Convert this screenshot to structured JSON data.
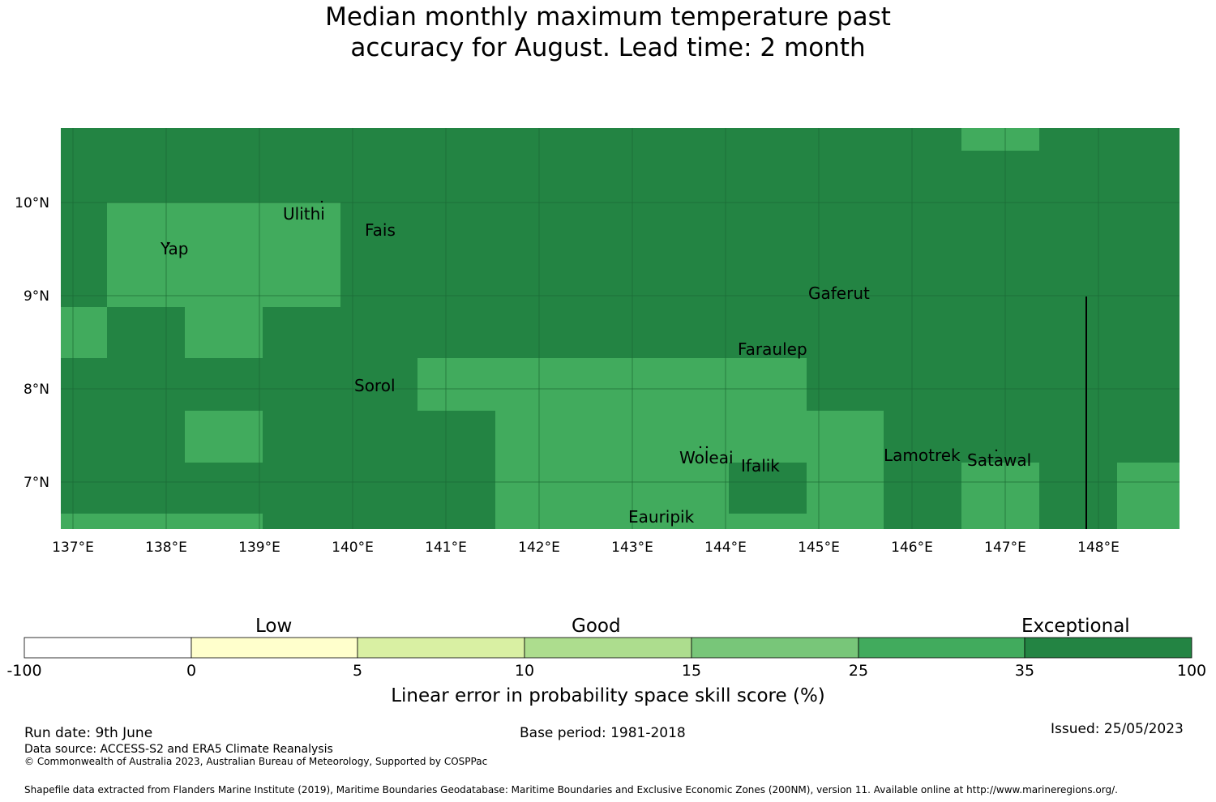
{
  "title_line1": "Median monthly maximum temperature past",
  "title_line2": "accuracy for August. Lead time: 2 month",
  "map": {
    "lon_labels": [
      "137°E",
      "138°E",
      "139°E",
      "140°E",
      "141°E",
      "142°E",
      "143°E",
      "144°E",
      "145°E",
      "146°E",
      "147°E",
      "148°E"
    ],
    "lat_labels": [
      "10°N",
      "9°N",
      "8°N",
      "7°N"
    ],
    "places": [
      {
        "name": "Ulithi"
      },
      {
        "name": "Fais"
      },
      {
        "name": "Yap"
      },
      {
        "name": "Gaferut"
      },
      {
        "name": "Faraulep"
      },
      {
        "name": "Sorol"
      },
      {
        "name": "Woleai"
      },
      {
        "name": "Ifalik"
      },
      {
        "name": "Lamotrek"
      },
      {
        "name": "Satawal"
      },
      {
        "name": "Eauripik"
      }
    ],
    "colors": {
      "exceptional": "#238443",
      "very_good": "#41ab5d",
      "grid": "#1b6a35"
    },
    "default_category": "exceptional",
    "very_good_cells_description": "LEPS 25-35% regions; remainder 35-100%"
  },
  "colorbar": {
    "categories": [
      "Low",
      "Good",
      "Exceptional"
    ],
    "ticks": [
      "-100",
      "0",
      "5",
      "10",
      "15",
      "25",
      "35",
      "100"
    ],
    "colors": [
      "#ffffff",
      "#ffffcc",
      "#d9f0a3",
      "#addd8e",
      "#78c679",
      "#41ab5d",
      "#238443"
    ],
    "label": "Linear error in probability space skill score (%)"
  },
  "footer": {
    "run_date": "Run date: 9th June",
    "base_period": "Base period: 1981-2018",
    "issued": "Issued: 25/05/2023",
    "data_source": "Data source: ACCESS-S2 and ERA5 Climate Reanalysis",
    "copyright": "© Commonwealth of Australia 2023, Australian Bureau of Meteorology, Supported by COSPPac",
    "shapefile": "Shapefile data extracted from Flanders Marine Institute (2019), Maritime Boundaries Geodatabase: Maritime Boundaries and Exclusive Economic Zones (200NM), version 11. Available online at http://www.marineregions.org/."
  }
}
